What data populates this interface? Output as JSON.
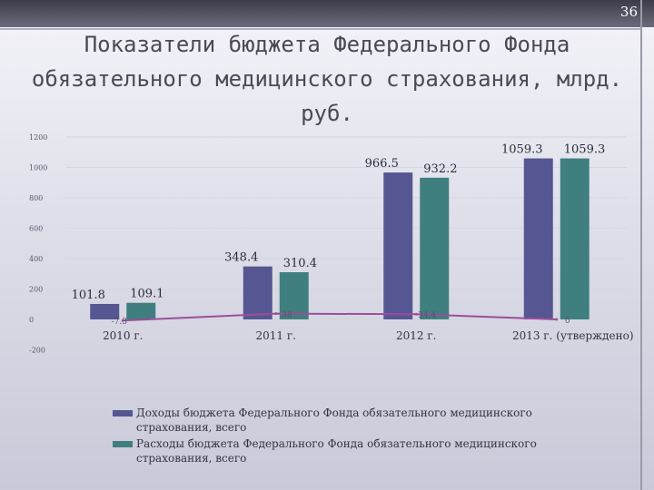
{
  "slide": {
    "page_number": "36",
    "title_line1": "Показатели бюджета Федерального Фонда",
    "title_line2": "обязательного медицинского страхования, млрд.",
    "title_line3": "руб."
  },
  "colors": {
    "income": "#565692",
    "expense": "#3f7f7f",
    "balance": "#9b4f9b"
  },
  "chart_data": {
    "type": "bar",
    "categories": [
      "2010 г.",
      "2011 г.",
      "2012 г.",
      "2013 г. (утверждено)"
    ],
    "series": [
      {
        "name": "Доходы бюджета Федерального Фонда обязательного медицинского страхования, всего",
        "values": [
          101.8,
          348.4,
          966.5,
          1059.3
        ],
        "labels": [
          "101.8",
          "348.4",
          "966.5",
          "1059.3"
        ]
      },
      {
        "name": "Расходы бюджета Федерального Фонда обязательного медицинского страхования, всего",
        "values": [
          109.1,
          310.4,
          932.2,
          1059.3
        ],
        "labels": [
          "109.1",
          "310.4",
          "932.2",
          "1059.3"
        ]
      }
    ],
    "balance_line": {
      "type": "line",
      "values": [
        -7.3,
        38,
        34.4,
        0
      ],
      "labels": [
        "-7.3",
        "38",
        "34.4",
        "0"
      ]
    },
    "yticks": [
      "1200",
      "1000",
      "800",
      "600",
      "400",
      "200",
      "0",
      "-200"
    ],
    "ytick_values": [
      1200,
      1000,
      800,
      600,
      400,
      200,
      0,
      -200
    ],
    "ylim": [
      -200,
      1200
    ],
    "legend_position": "bottom"
  }
}
